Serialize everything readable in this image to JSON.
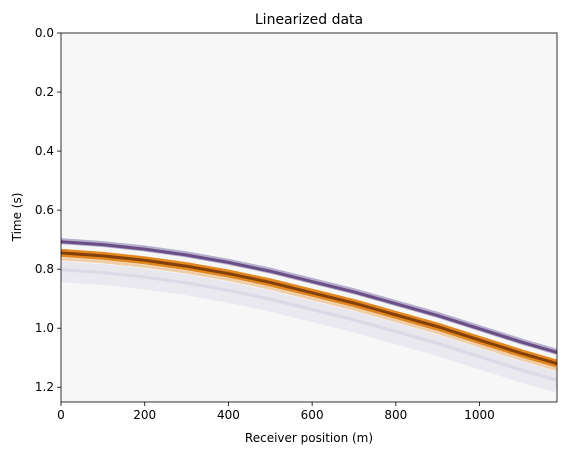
{
  "chart_data": {
    "type": "heatmap",
    "title": "Linearized data",
    "xlabel": "Receiver position (m)",
    "ylabel": "Time (s)",
    "xlim": [
      0,
      1185
    ],
    "ylim": [
      1.25,
      0.0
    ],
    "x_ticks": [
      0,
      200,
      400,
      600,
      800,
      1000
    ],
    "x_tick_labels": [
      "0",
      "200",
      "400",
      "600",
      "800",
      "1000"
    ],
    "y_ticks": [
      0.0,
      0.2,
      0.4,
      0.6,
      0.8,
      1.0,
      1.2
    ],
    "y_tick_labels": [
      "0.0",
      "0.2",
      "0.4",
      "0.6",
      "0.8",
      "1.0",
      "1.2"
    ],
    "colormap": "PuOr",
    "background_color": "#f7f7f7",
    "positive_color": "#7f3b08",
    "positive_mid_color": "#e08214",
    "negative_color": "#2d004b",
    "negative_mid_color": "#8073ac",
    "event_curve": {
      "x": [
        0,
        100,
        200,
        300,
        400,
        500,
        600,
        700,
        800,
        900,
        1000,
        1100,
        1185
      ],
      "t": [
        0.745,
        0.755,
        0.77,
        0.79,
        0.815,
        0.845,
        0.88,
        0.915,
        0.955,
        0.995,
        1.04,
        1.085,
        1.12
      ]
    }
  }
}
